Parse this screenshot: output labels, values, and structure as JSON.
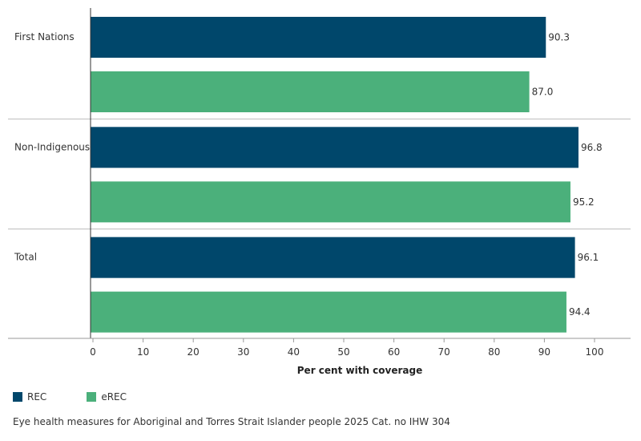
{
  "chart_data": {
    "type": "bar",
    "orientation": "horizontal",
    "categories": [
      "First Nations",
      "Non-Indigenous",
      "Total"
    ],
    "series": [
      {
        "name": "REC",
        "color": "#00476b",
        "values": [
          90.3,
          96.8,
          96.1
        ],
        "labels": [
          "90.3",
          "96.8",
          "96.1"
        ]
      },
      {
        "name": "eREC",
        "color": "#4bb07b",
        "values": [
          87.0,
          95.2,
          94.4
        ],
        "labels": [
          "87.0",
          "95.2",
          "94.4"
        ]
      }
    ],
    "xlabel": "Per cent with coverage",
    "xlim": [
      0,
      100
    ],
    "xticks": [
      0,
      10,
      20,
      30,
      40,
      50,
      60,
      70,
      80,
      90,
      100
    ],
    "grid": false,
    "legend_position": "bottom-left"
  },
  "footer": {
    "text": "Eye health measures for Aboriginal and Torres Strait Islander people 2025 Cat. no IHW 304"
  }
}
